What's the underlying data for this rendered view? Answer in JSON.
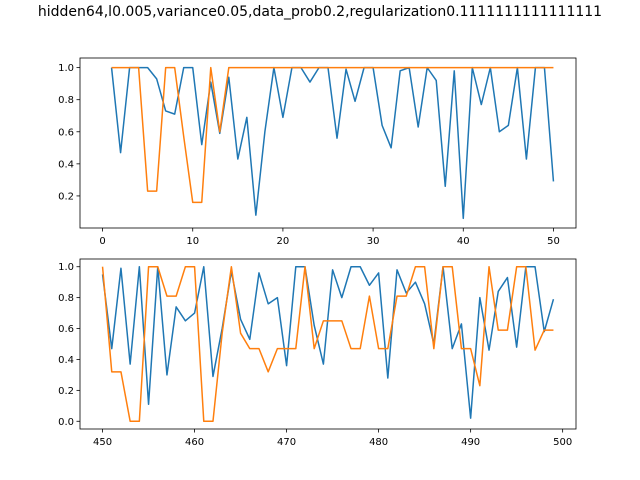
{
  "figure": {
    "title": "hidden64,l0.005,variance0.05,data_prob0.2,regularization0.1111111111111111"
  },
  "colors": {
    "series1": "#1f77b4",
    "series2": "#ff7f0e",
    "axis": "#000000"
  },
  "chart_data": [
    {
      "type": "line",
      "xlim": [
        -2.5,
        52.5
      ],
      "ylim": [
        0.0,
        1.06
      ],
      "xticks": [
        0,
        10,
        20,
        30,
        40,
        50
      ],
      "yticks": [
        0.2,
        0.4,
        0.6,
        0.8,
        1.0
      ],
      "grid": false,
      "x": [
        1,
        2,
        3,
        4,
        5,
        6,
        7,
        8,
        9,
        10,
        11,
        12,
        13,
        14,
        15,
        16,
        17,
        18,
        19,
        20,
        21,
        22,
        23,
        24,
        25,
        26,
        27,
        28,
        29,
        30,
        31,
        32,
        33,
        34,
        35,
        36,
        37,
        38,
        39,
        40,
        41,
        42,
        43,
        44,
        45,
        46,
        47,
        48,
        49,
        50
      ],
      "series": [
        {
          "values": [
            1.0,
            0.47,
            1.0,
            1.0,
            1.0,
            0.93,
            0.73,
            0.71,
            1.0,
            1.0,
            0.52,
            0.91,
            0.59,
            0.94,
            0.43,
            0.69,
            0.08,
            0.6,
            1.0,
            0.69,
            1.0,
            1.0,
            0.91,
            1.0,
            1.0,
            0.56,
            0.99,
            0.79,
            1.0,
            1.0,
            0.64,
            0.5,
            0.98,
            1.0,
            0.63,
            1.0,
            0.92,
            0.26,
            0.98,
            0.06,
            1.0,
            0.77,
            1.0,
            0.6,
            0.64,
            1.0,
            0.43,
            1.0,
            1.0,
            0.29
          ]
        },
        {
          "values": [
            1.0,
            1.0,
            1.0,
            1.0,
            0.23,
            0.23,
            1.0,
            1.0,
            0.57,
            0.16,
            0.16,
            1.0,
            0.6,
            1.0,
            1.0,
            1.0,
            1.0,
            1.0,
            1.0,
            1.0,
            1.0,
            1.0,
            1.0,
            1.0,
            1.0,
            1.0,
            1.0,
            1.0,
            1.0,
            1.0,
            1.0,
            1.0,
            1.0,
            1.0,
            1.0,
            1.0,
            1.0,
            1.0,
            1.0,
            1.0,
            1.0,
            1.0,
            1.0,
            1.0,
            1.0,
            1.0,
            1.0,
            1.0,
            1.0,
            1.0
          ]
        }
      ]
    },
    {
      "type": "line",
      "xlim": [
        447.55,
        501.45
      ],
      "ylim": [
        -0.05,
        1.05
      ],
      "xticks": [
        450,
        460,
        470,
        480,
        490,
        500
      ],
      "yticks": [
        0.0,
        0.2,
        0.4,
        0.6,
        0.8,
        1.0
      ],
      "grid": false,
      "x": [
        450,
        451,
        452,
        453,
        454,
        455,
        456,
        457,
        458,
        459,
        460,
        461,
        462,
        463,
        464,
        465,
        466,
        467,
        468,
        469,
        470,
        471,
        472,
        473,
        474,
        475,
        476,
        477,
        478,
        479,
        480,
        481,
        482,
        483,
        484,
        485,
        486,
        487,
        488,
        489,
        490,
        491,
        492,
        493,
        494,
        495,
        496,
        497,
        498,
        499
      ],
      "series": [
        {
          "values": [
            0.95,
            0.47,
            0.99,
            0.37,
            1.0,
            0.11,
            1.0,
            0.3,
            0.74,
            0.65,
            0.7,
            1.0,
            0.29,
            0.6,
            0.97,
            0.66,
            0.53,
            0.96,
            0.76,
            0.8,
            0.36,
            1.0,
            1.0,
            0.62,
            0.37,
            0.98,
            0.8,
            1.0,
            1.0,
            0.88,
            0.96,
            0.28,
            0.98,
            0.83,
            0.9,
            0.76,
            0.5,
            1.0,
            0.47,
            0.63,
            0.02,
            0.8,
            0.46,
            0.84,
            0.93,
            0.48,
            1.0,
            1.0,
            0.58,
            0.79
          ]
        },
        {
          "values": [
            1.0,
            0.32,
            0.32,
            0.0,
            0.0,
            1.0,
            1.0,
            0.81,
            0.81,
            1.0,
            1.0,
            0.0,
            0.0,
            0.57,
            1.0,
            0.57,
            0.47,
            0.47,
            0.32,
            0.47,
            0.47,
            0.47,
            1.0,
            0.47,
            0.65,
            0.65,
            0.65,
            0.47,
            0.47,
            0.81,
            0.47,
            0.47,
            0.81,
            0.81,
            1.0,
            1.0,
            0.47,
            1.0,
            1.0,
            0.47,
            0.47,
            0.23,
            1.0,
            0.59,
            0.59,
            1.0,
            1.0,
            0.46,
            0.59,
            0.59
          ]
        }
      ]
    }
  ]
}
